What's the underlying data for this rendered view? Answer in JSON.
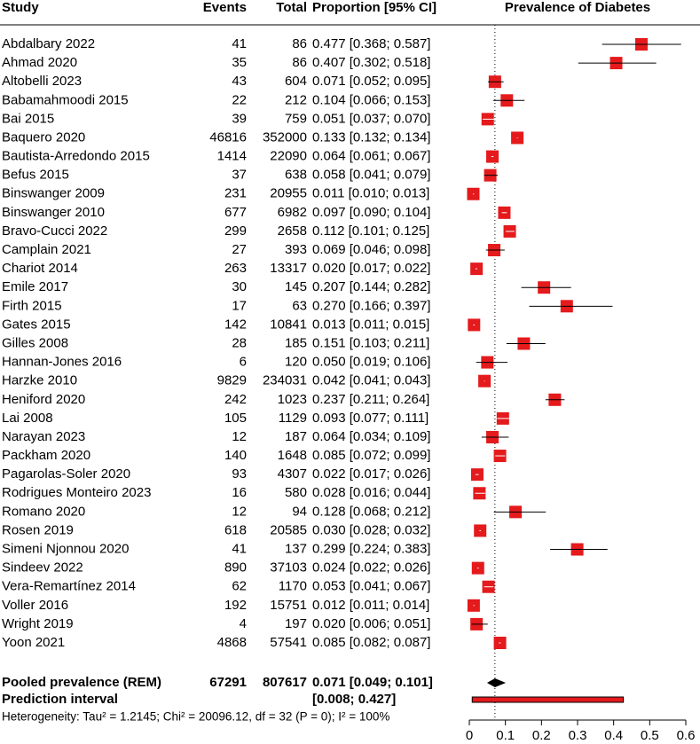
{
  "chart_data": {
    "type": "forest",
    "headers": {
      "study": "Study",
      "events": "Events",
      "total": "Total",
      "ci": "Proportion [95% CI]",
      "plot": "Prevalence of Diabetes"
    },
    "xlim": [
      0,
      0.6
    ],
    "xticks": [
      0,
      0.1,
      0.2,
      0.3,
      0.4,
      0.5,
      0.6
    ],
    "color": "#e41a1c",
    "studies": [
      {
        "study": "Abdalbary 2022",
        "events": 41,
        "total": 86,
        "proportion": 0.477,
        "lower": 0.368,
        "upper": 0.587,
        "ci_label": "0.477 [0.368; 0.587]"
      },
      {
        "study": "Ahmad 2020",
        "events": 35,
        "total": 86,
        "proportion": 0.407,
        "lower": 0.302,
        "upper": 0.518,
        "ci_label": "0.407 [0.302; 0.518]"
      },
      {
        "study": "Altobelli 2023",
        "events": 43,
        "total": 604,
        "proportion": 0.071,
        "lower": 0.052,
        "upper": 0.095,
        "ci_label": "0.071 [0.052; 0.095]"
      },
      {
        "study": "Babamahmoodi 2015",
        "events": 22,
        "total": 212,
        "proportion": 0.104,
        "lower": 0.066,
        "upper": 0.153,
        "ci_label": "0.104 [0.066; 0.153]"
      },
      {
        "study": "Bai 2015",
        "events": 39,
        "total": 759,
        "proportion": 0.051,
        "lower": 0.037,
        "upper": 0.07,
        "ci_label": "0.051 [0.037; 0.070]"
      },
      {
        "study": "Baquero 2020",
        "events": 46816,
        "total": 352000,
        "proportion": 0.133,
        "lower": 0.132,
        "upper": 0.134,
        "ci_label": "0.133 [0.132; 0.134]"
      },
      {
        "study": "Bautista-Arredondo 2015",
        "events": 1414,
        "total": 22090,
        "proportion": 0.064,
        "lower": 0.061,
        "upper": 0.067,
        "ci_label": "0.064 [0.061; 0.067]"
      },
      {
        "study": "Befus 2015",
        "events": 37,
        "total": 638,
        "proportion": 0.058,
        "lower": 0.041,
        "upper": 0.079,
        "ci_label": "0.058 [0.041; 0.079]"
      },
      {
        "study": "Binswanger 2009",
        "events": 231,
        "total": 20955,
        "proportion": 0.011,
        "lower": 0.01,
        "upper": 0.013,
        "ci_label": "0.011 [0.010; 0.013]"
      },
      {
        "study": "Binswanger 2010",
        "events": 677,
        "total": 6982,
        "proportion": 0.097,
        "lower": 0.09,
        "upper": 0.104,
        "ci_label": "0.097 [0.090; 0.104]"
      },
      {
        "study": "Bravo-Cucci 2022",
        "events": 299,
        "total": 2658,
        "proportion": 0.112,
        "lower": 0.101,
        "upper": 0.125,
        "ci_label": "0.112 [0.101; 0.125]"
      },
      {
        "study": "Camplain 2021",
        "events": 27,
        "total": 393,
        "proportion": 0.069,
        "lower": 0.046,
        "upper": 0.098,
        "ci_label": "0.069 [0.046; 0.098]"
      },
      {
        "study": "Chariot 2014",
        "events": 263,
        "total": 13317,
        "proportion": 0.02,
        "lower": 0.017,
        "upper": 0.022,
        "ci_label": "0.020 [0.017; 0.022]"
      },
      {
        "study": "Emile 2017",
        "events": 30,
        "total": 145,
        "proportion": 0.207,
        "lower": 0.144,
        "upper": 0.282,
        "ci_label": "0.207 [0.144; 0.282]"
      },
      {
        "study": "Firth 2015",
        "events": 17,
        "total": 63,
        "proportion": 0.27,
        "lower": 0.166,
        "upper": 0.397,
        "ci_label": "0.270 [0.166; 0.397]"
      },
      {
        "study": "Gates 2015",
        "events": 142,
        "total": 10841,
        "proportion": 0.013,
        "lower": 0.011,
        "upper": 0.015,
        "ci_label": "0.013 [0.011; 0.015]"
      },
      {
        "study": "Gilles 2008",
        "events": 28,
        "total": 185,
        "proportion": 0.151,
        "lower": 0.103,
        "upper": 0.211,
        "ci_label": "0.151 [0.103; 0.211]"
      },
      {
        "study": "Hannan-Jones 2016",
        "events": 6,
        "total": 120,
        "proportion": 0.05,
        "lower": 0.019,
        "upper": 0.106,
        "ci_label": "0.050 [0.019; 0.106]"
      },
      {
        "study": "Harzke 2010",
        "events": 9829,
        "total": 234031,
        "proportion": 0.042,
        "lower": 0.041,
        "upper": 0.043,
        "ci_label": "0.042 [0.041; 0.043]"
      },
      {
        "study": "Heniford 2020",
        "events": 242,
        "total": 1023,
        "proportion": 0.237,
        "lower": 0.211,
        "upper": 0.264,
        "ci_label": "0.237 [0.211; 0.264]"
      },
      {
        "study": "Lai 2008",
        "events": 105,
        "total": 1129,
        "proportion": 0.093,
        "lower": 0.077,
        "upper": 0.111,
        "ci_label": "0.093 [0.077; 0.111]"
      },
      {
        "study": "Narayan 2023",
        "events": 12,
        "total": 187,
        "proportion": 0.064,
        "lower": 0.034,
        "upper": 0.109,
        "ci_label": "0.064 [0.034; 0.109]"
      },
      {
        "study": "Packham 2020",
        "events": 140,
        "total": 1648,
        "proportion": 0.085,
        "lower": 0.072,
        "upper": 0.099,
        "ci_label": "0.085 [0.072; 0.099]"
      },
      {
        "study": "Pagarolas-Soler 2020",
        "events": 93,
        "total": 4307,
        "proportion": 0.022,
        "lower": 0.017,
        "upper": 0.026,
        "ci_label": "0.022 [0.017; 0.026]"
      },
      {
        "study": "Rodrigues Monteiro 2023",
        "events": 16,
        "total": 580,
        "proportion": 0.028,
        "lower": 0.016,
        "upper": 0.044,
        "ci_label": "0.028 [0.016; 0.044]"
      },
      {
        "study": "Romano 2020",
        "events": 12,
        "total": 94,
        "proportion": 0.128,
        "lower": 0.068,
        "upper": 0.212,
        "ci_label": "0.128 [0.068; 0.212]"
      },
      {
        "study": "Rosen 2019",
        "events": 618,
        "total": 20585,
        "proportion": 0.03,
        "lower": 0.028,
        "upper": 0.032,
        "ci_label": "0.030 [0.028; 0.032]"
      },
      {
        "study": "Simeni Njonnou 2020",
        "events": 41,
        "total": 137,
        "proportion": 0.299,
        "lower": 0.224,
        "upper": 0.383,
        "ci_label": "0.299 [0.224; 0.383]"
      },
      {
        "study": "Sindeev 2022",
        "events": 890,
        "total": 37103,
        "proportion": 0.024,
        "lower": 0.022,
        "upper": 0.026,
        "ci_label": "0.024 [0.022; 0.026]"
      },
      {
        "study": "Vera-Remartínez 2014",
        "events": 62,
        "total": 1170,
        "proportion": 0.053,
        "lower": 0.041,
        "upper": 0.067,
        "ci_label": "0.053 [0.041; 0.067]"
      },
      {
        "study": "Voller 2016",
        "events": 192,
        "total": 15751,
        "proportion": 0.012,
        "lower": 0.011,
        "upper": 0.014,
        "ci_label": "0.012 [0.011; 0.014]"
      },
      {
        "study": "Wright 2019",
        "events": 4,
        "total": 197,
        "proportion": 0.02,
        "lower": 0.006,
        "upper": 0.051,
        "ci_label": "0.020 [0.006; 0.051]"
      },
      {
        "study": "Yoon 2021",
        "events": 4868,
        "total": 57541,
        "proportion": 0.085,
        "lower": 0.082,
        "upper": 0.087,
        "ci_label": "0.085 [0.082; 0.087]"
      }
    ],
    "pooled": {
      "study": "Pooled prevalence (REM)",
      "events": 67291,
      "total": 807617,
      "proportion": 0.071,
      "lower": 0.049,
      "upper": 0.101,
      "ci_label": "0.071 [0.049; 0.101]"
    },
    "prediction": {
      "study": "Prediction interval",
      "lower": 0.008,
      "upper": 0.427,
      "ci_label": "[0.008; 0.427]"
    },
    "heterogeneity": "Heterogeneity: Tau² = 1.2145; Chi² = 20096.12, df = 32 (P = 0); I² = 100%"
  }
}
